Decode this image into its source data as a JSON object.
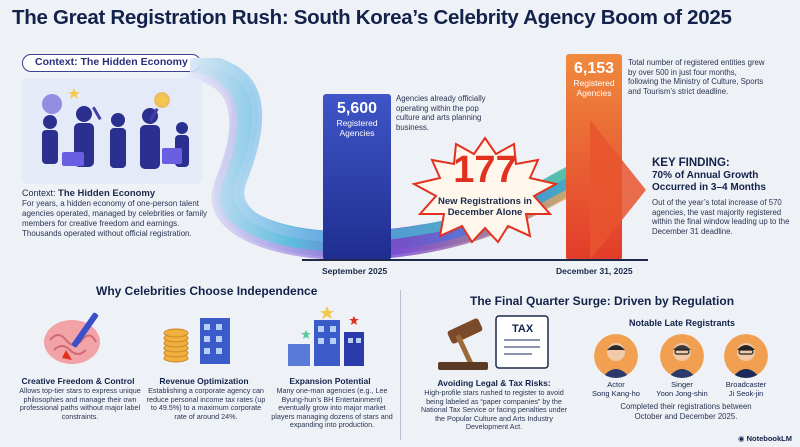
{
  "title": "The Great Registration Rush: South Korea’s Celebrity Agency Boom of 2025",
  "context": {
    "pill": "Context: The Hidden Economy",
    "heading_prefix": "Context: ",
    "heading_bold": "The Hidden Economy",
    "body": "For years, a hidden economy of one-person talent agencies operated, managed by celebrities or family members for creative freedom and earnings. Thousands operated without official registration."
  },
  "bars": {
    "sep_value": "5,600",
    "sep_label": "Registered Agencies",
    "sep_note": "Agencies already officially operating within the pop culture and arts planning business.",
    "sep_x": "September 2025",
    "dec_value": "6,153",
    "dec_label": "Registered Agencies",
    "dec_note": "Total number of registered entities grew by over 500 in just four months, following the Ministry of Culture, Sports and Tourism’s strict deadline.",
    "dec_x": "December 31, 2025"
  },
  "burst": {
    "number": "177",
    "text": "New Registrations in December Alone"
  },
  "key_finding": {
    "title": "KEY FINDING:",
    "subtitle": "70% of Annual Growth Occurred in 3–4 Months",
    "body": "Out of the year’s total increase of 570 agencies, the vast majority registered within the final window leading up to the December 31 deadline."
  },
  "why": {
    "title": "Why Celebrities Choose Independence",
    "items": [
      {
        "head": "Creative Freedom & Control",
        "body": "Allows top-tier stars to express unique philosophies and manage their own professional paths without major label constraints."
      },
      {
        "head": "Revenue Optimization",
        "body": "Establishing a corporate agency can reduce personal income tax rates (up to 49.5%) to a maximum corporate rate of around 24%."
      },
      {
        "head": "Expansion Potential",
        "body": "Many one-man agencies (e.g., Lee Byung-hun’s BH Entertainment) eventually grow into major market players managing dozens of stars and expanding into production."
      }
    ]
  },
  "surge": {
    "title": "The Final Quarter Surge: Driven by Regulation",
    "tax_label": "TAX",
    "legal_head": "Avoiding Legal & Tax Risks:",
    "legal_body": "High-profile stars rushed to register to avoid being labeled as “paper companies” by the National Tax Service or facing penalties under the Popular Culture and Arts Industry Development Act.",
    "notable_title": "Notable Late Registrants",
    "registrants": [
      {
        "role": "Actor",
        "name": "Song Kang-ho"
      },
      {
        "role": "Singer",
        "name": "Yoon Jong-shin"
      },
      {
        "role": "Broadcaster",
        "name": "Ji Seok-jin"
      }
    ],
    "completed": "Completed their registrations between October and December 2025."
  },
  "brand": "NotebookLM",
  "colors": {
    "navy": "#13224a",
    "blue_bar": "#2a3aa8",
    "orange_bar": "#e8552e",
    "accent_red": "#e3311f"
  }
}
